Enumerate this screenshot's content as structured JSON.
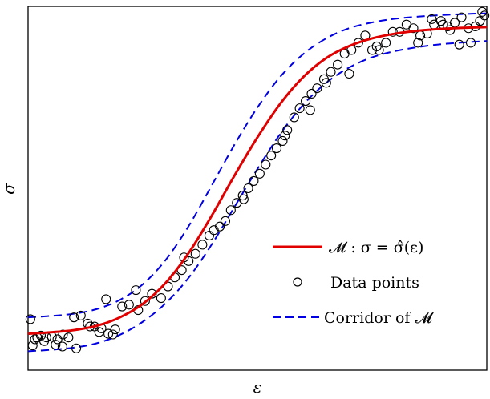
{
  "chart_data": {
    "type": "scatter",
    "xlabel": "ε",
    "ylabel": "σ",
    "xlim": [
      0,
      1
    ],
    "ylim": [
      0,
      1
    ],
    "grid": false,
    "legend_position": "bottom-right",
    "legend": [
      {
        "label": "𝓜 : σ = σ̂(ε)",
        "style": "solid",
        "color": "#e00000"
      },
      {
        "label": "Data points",
        "style": "circle-marker",
        "color": "#000000"
      },
      {
        "label": "Corridor of 𝓜",
        "style": "dashed",
        "color": "#0000e0"
      }
    ],
    "model_curve": {
      "x": [
        0.0,
        0.05,
        0.1,
        0.15,
        0.2,
        0.25,
        0.3,
        0.35,
        0.4,
        0.45,
        0.5,
        0.55,
        0.6,
        0.65,
        0.7,
        0.75,
        0.8,
        0.85,
        0.9,
        0.95,
        1.0
      ],
      "y": [
        0.1,
        0.104,
        0.11,
        0.122,
        0.145,
        0.182,
        0.24,
        0.322,
        0.424,
        0.535,
        0.64,
        0.733,
        0.806,
        0.858,
        0.891,
        0.912,
        0.925,
        0.933,
        0.938,
        0.941,
        0.943
      ]
    },
    "corridor_upper": {
      "x": [
        0.0,
        0.05,
        0.1,
        0.15,
        0.2,
        0.25,
        0.3,
        0.35,
        0.4,
        0.45,
        0.5,
        0.55,
        0.6,
        0.65,
        0.7,
        0.75,
        0.8,
        0.85,
        0.9,
        0.95,
        1.0
      ],
      "y": [
        0.145,
        0.149,
        0.155,
        0.168,
        0.193,
        0.236,
        0.303,
        0.396,
        0.507,
        0.62,
        0.722,
        0.807,
        0.869,
        0.912,
        0.94,
        0.956,
        0.966,
        0.972,
        0.976,
        0.979,
        0.981
      ]
    },
    "corridor_lower": {
      "x": [
        0.0,
        0.05,
        0.1,
        0.15,
        0.2,
        0.25,
        0.3,
        0.35,
        0.4,
        0.45,
        0.5,
        0.55,
        0.6,
        0.65,
        0.7,
        0.75,
        0.8,
        0.85,
        0.9,
        0.95,
        1.0
      ],
      "y": [
        0.052,
        0.056,
        0.062,
        0.074,
        0.097,
        0.133,
        0.184,
        0.254,
        0.345,
        0.449,
        0.553,
        0.65,
        0.73,
        0.79,
        0.832,
        0.86,
        0.877,
        0.888,
        0.896,
        0.901,
        0.905
      ]
    },
    "points": {
      "x": [
        0.005,
        0.015,
        0.028,
        0.04,
        0.052,
        0.064,
        0.076,
        0.088,
        0.01,
        0.035,
        0.06,
        0.1,
        0.115,
        0.13,
        0.145,
        0.16,
        0.175,
        0.19,
        0.105,
        0.155,
        0.185,
        0.205,
        0.22,
        0.24,
        0.255,
        0.27,
        0.29,
        0.305,
        0.32,
        0.335,
        0.35,
        0.365,
        0.38,
        0.395,
        0.405,
        0.418,
        0.43,
        0.442,
        0.455,
        0.468,
        0.48,
        0.492,
        0.505,
        0.518,
        0.53,
        0.542,
        0.555,
        0.565,
        0.58,
        0.592,
        0.605,
        0.618,
        0.63,
        0.645,
        0.66,
        0.675,
        0.69,
        0.705,
        0.72,
        0.735,
        0.75,
        0.765,
        0.78,
        0.795,
        0.81,
        0.825,
        0.84,
        0.855,
        0.87,
        0.885,
        0.9,
        0.915,
        0.93,
        0.945,
        0.96,
        0.975,
        0.99,
        0.02,
        0.075,
        0.135,
        0.17,
        0.235,
        0.34,
        0.47,
        0.56,
        0.65,
        0.76,
        0.85,
        0.905,
        0.94,
        0.965,
        0.985,
        0.995,
        0.88,
        0.92,
        0.7,
        0.615
      ],
      "y": [
        0.14,
        0.085,
        0.095,
        0.09,
        0.092,
        0.085,
        0.098,
        0.09,
        0.068,
        0.08,
        0.07,
        0.145,
        0.15,
        0.128,
        0.12,
        0.115,
        0.1,
        0.112,
        0.06,
        0.105,
        0.098,
        0.175,
        0.18,
        0.165,
        0.19,
        0.21,
        0.198,
        0.23,
        0.255,
        0.275,
        0.3,
        0.32,
        0.345,
        0.37,
        0.385,
        0.395,
        0.41,
        0.44,
        0.46,
        0.48,
        0.5,
        0.52,
        0.54,
        0.565,
        0.59,
        0.61,
        0.63,
        0.66,
        0.695,
        0.72,
        0.74,
        0.76,
        0.775,
        0.8,
        0.82,
        0.84,
        0.87,
        0.88,
        0.9,
        0.92,
        0.88,
        0.88,
        0.9,
        0.93,
        0.93,
        0.95,
        0.94,
        0.92,
        0.925,
        0.95,
        0.96,
        0.945,
        0.955,
        0.97,
        0.94,
        0.945,
        0.985,
        0.09,
        0.065,
        0.12,
        0.195,
        0.22,
        0.31,
        0.47,
        0.645,
        0.79,
        0.89,
        0.9,
        0.95,
        0.895,
        0.9,
        0.96,
        0.975,
        0.965,
        0.935,
        0.815,
        0.715
      ]
    }
  }
}
